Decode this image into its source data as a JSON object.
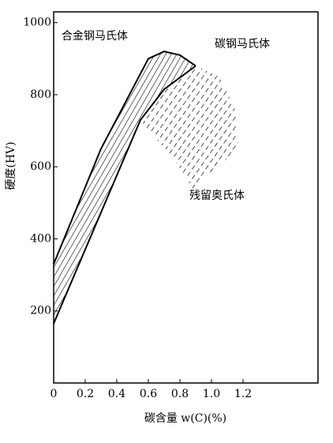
{
  "chart_data": {
    "type": "line",
    "x_label": "碳含量 w(C)(%)",
    "y_label": "硬度(HV)",
    "xlim": [
      0,
      1.675
    ],
    "ylim": [
      0,
      1030
    ],
    "xticks": [
      0,
      0.2,
      0.4,
      0.6,
      0.8,
      {
        "value": 1,
        "label": "1.0"
      },
      1.2
    ],
    "yticks": [
      200,
      400,
      600,
      800,
      1000
    ],
    "series": [
      {
        "name": "碳钢马氏体",
        "color": "#000000",
        "x": [
          0,
          0.55,
          0.7,
          0.9
        ],
        "values": [
          165,
          730,
          815,
          880
        ]
      },
      {
        "name": "合金钢马氏体",
        "color": "#000000",
        "x": [
          0,
          0.3,
          0.6,
          0.7,
          0.8,
          0.9
        ],
        "values": [
          330,
          650,
          900,
          920,
          910,
          880
        ],
        "fill": "hatch"
      },
      {
        "name": "残留奥氏体",
        "color": "#000000",
        "x": [
          0.55,
          0.7,
          0.9,
          1.05,
          1.15,
          1.17,
          0.88,
          0.75,
          0.6,
          0.55
        ],
        "values": [
          730,
          820,
          880,
          850,
          760,
          650,
          540,
          630,
          700,
          730
        ],
        "fill": "dash-hatch"
      }
    ]
  }
}
